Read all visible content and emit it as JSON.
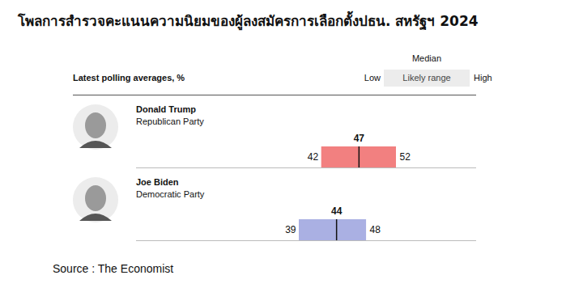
{
  "chart_data": {
    "type": "range_bar",
    "title": "โพลการสำรวจคะแนนความนิยมของผู้ลงสมัครการเลือกตั้งปธน. สหรัฐฯ 2024",
    "subtitle": "Latest polling averages, %",
    "legend_title": "Median",
    "legend_labels": [
      "Low",
      "Likely range",
      "High"
    ],
    "categories": [
      "Donald Trump",
      "Joe Biden"
    ],
    "parties": [
      "Republican Party",
      "Democratic Party"
    ],
    "low": [
      42,
      39
    ],
    "median": [
      47,
      44
    ],
    "high": [
      52,
      48
    ],
    "colors": [
      "#f28080",
      "#aab0e3"
    ],
    "orientation": "horizontal",
    "data_labels": true,
    "tick_labels": false,
    "caption": "Source : The Economist"
  }
}
